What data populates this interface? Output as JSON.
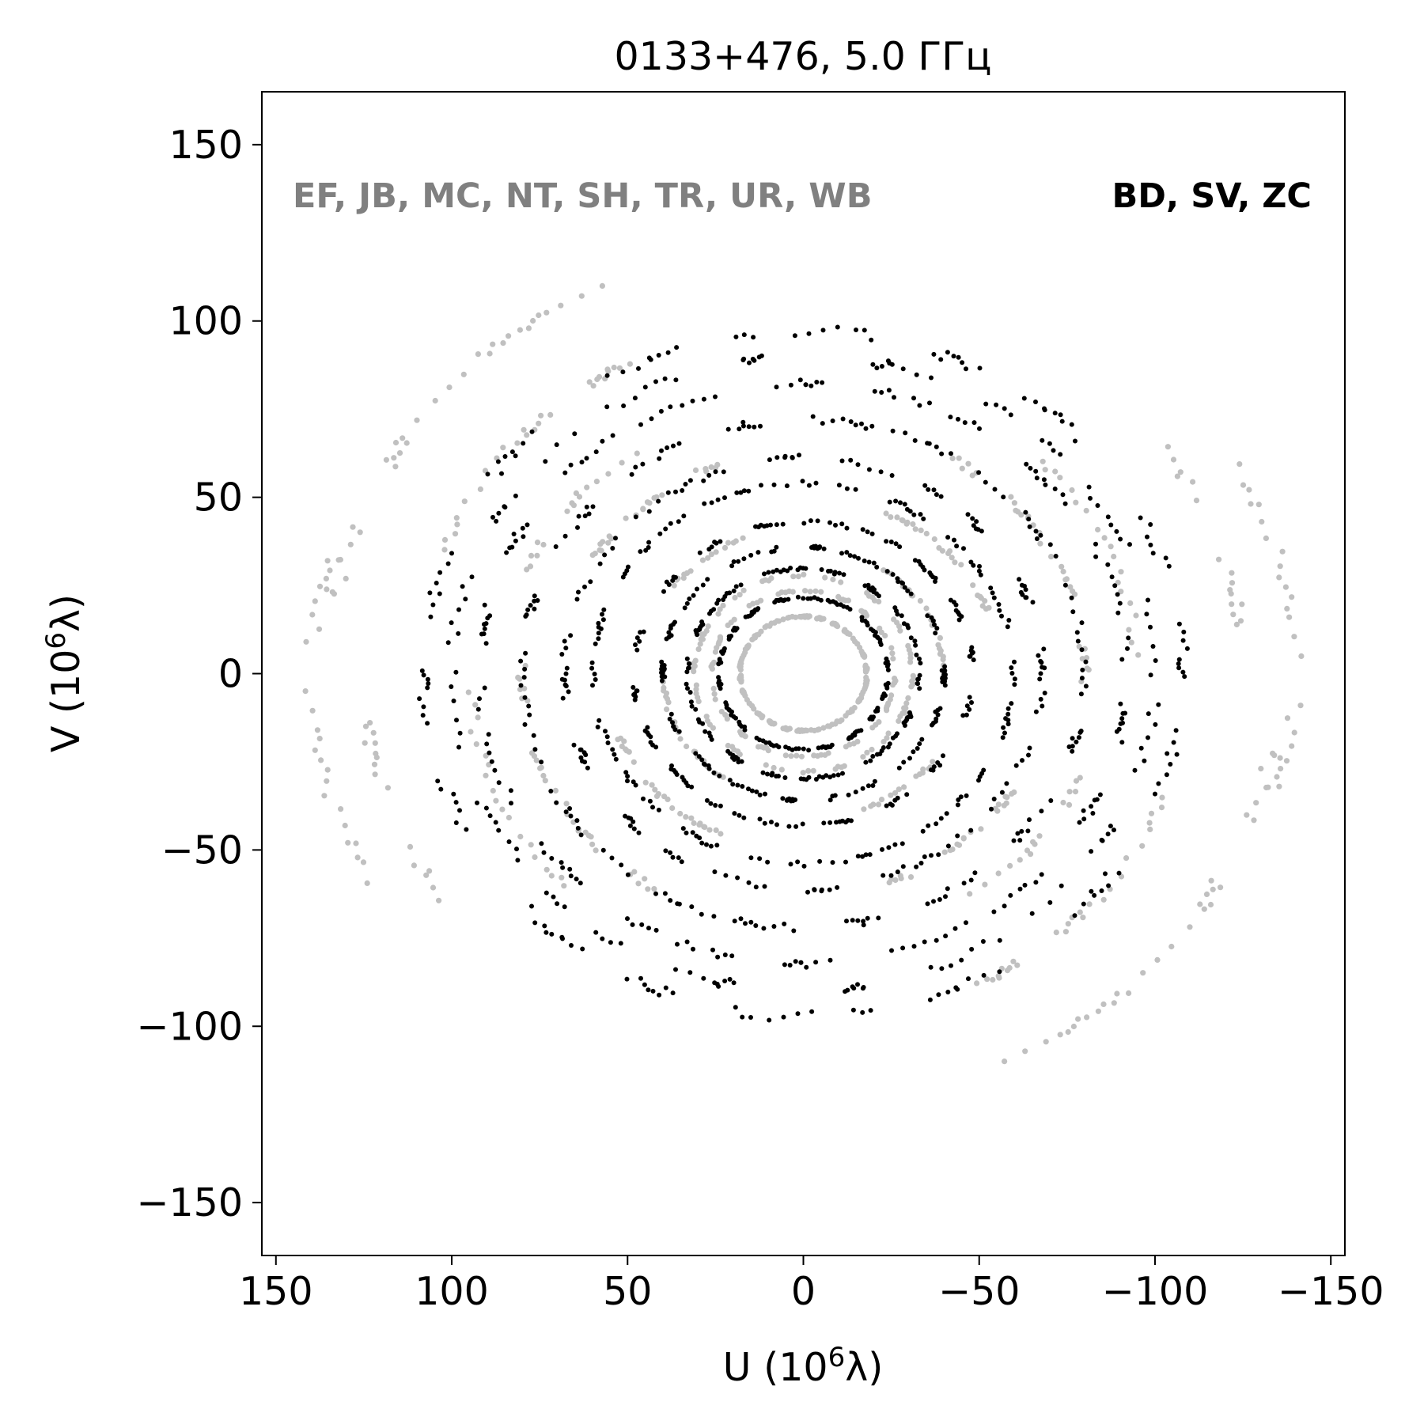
{
  "chart_data": {
    "type": "scatter",
    "title": "0133+476, 5.0 ГГц",
    "xlabel": "U (10",
    "xlabel_sup": "6",
    "xlabel_tail": "λ)",
    "ylabel": "V (10",
    "ylabel_sup": "6",
    "ylabel_tail": "λ)",
    "xlim": [
      154,
      -154
    ],
    "ylim": [
      -165,
      165
    ],
    "x_reversed": true,
    "xticks": [
      150,
      100,
      50,
      0,
      -50,
      -100,
      -150
    ],
    "yticks": [
      150,
      100,
      50,
      0,
      -50,
      -100,
      -150
    ],
    "xtick_labels": [
      "150",
      "100",
      "50",
      "0",
      "−50",
      "−100",
      "−150"
    ],
    "ytick_labels": [
      "150",
      "100",
      "50",
      "0",
      "−50",
      "−100",
      "−150"
    ],
    "grid": false,
    "annotations": [
      {
        "text": "EF, JB, MC, NT, SH, TR, UR, WB",
        "color": "#808080"
      },
      {
        "text": "BD, SV, ZC",
        "color": "#000000"
      }
    ],
    "series": [
      {
        "color": "#c0c0c0",
        "arcs": [
          {
            "r": 18,
            "a": [
              0,
              360
            ]
          },
          {
            "r": 26,
            "a": [
              20,
              200
            ]
          },
          {
            "r": 31,
            "a": [
              200,
              380
            ]
          },
          {
            "r": 40,
            "a": [
              125,
              175
            ]
          },
          {
            "r": 40,
            "a": [
              300,
              350
            ]
          },
          {
            "r": 46,
            "a": [
              215,
              250
            ]
          },
          {
            "r": 46,
            "a": [
              35,
              70
            ]
          },
          {
            "r": 56,
            "a": [
              115,
              165
            ]
          },
          {
            "r": 56,
            "a": [
              295,
              345
            ]
          },
          {
            "r": 70,
            "a": [
              205,
              255
            ]
          },
          {
            "r": 70,
            "a": [
              25,
              75
            ]
          },
          {
            "r": 80,
            "a": [
              120,
              175
            ]
          },
          {
            "r": 80,
            "a": [
              300,
              355
            ]
          },
          {
            "r": 85,
            "a": [
              200,
              235
            ]
          },
          {
            "r": 85,
            "a": [
              20,
              55
            ]
          },
          {
            "r": 95,
            "a": [
              135,
              175
            ]
          },
          {
            "r": 95,
            "a": [
              315,
              355
            ]
          },
          {
            "r": 110,
            "a": [
              200,
              245
            ]
          },
          {
            "r": 110,
            "a": [
              20,
              65
            ]
          },
          {
            "r": 125,
            "a": [
              140,
              180
            ]
          },
          {
            "r": 125,
            "a": [
              320,
              360
            ]
          },
          {
            "r": 135,
            "a": [
              185,
              240
            ]
          },
          {
            "r": 135,
            "a": [
              5,
              60
            ]
          },
          {
            "r": 140,
            "a": [
              150,
              195
            ]
          },
          {
            "r": 140,
            "a": [
              330,
              375
            ]
          }
        ]
      },
      {
        "color": "#000000",
        "arcs": [
          {
            "r": 24,
            "a": [
              0,
              360
            ]
          },
          {
            "r": 33,
            "a": [
              0,
              360
            ]
          },
          {
            "r": 40,
            "a": [
              0,
              360
            ]
          },
          {
            "r": 48,
            "a": [
              0,
              360
            ]
          },
          {
            "r": 60,
            "a": [
              0,
              360
            ]
          },
          {
            "r": 68,
            "a": [
              0,
              360
            ]
          },
          {
            "r": 80,
            "a": [
              0,
              360
            ]
          },
          {
            "r": 92,
            "a": [
              0,
              360
            ]
          },
          {
            "r": 100,
            "a": [
              0,
              360
            ]
          },
          {
            "r": 108,
            "a": [
              0,
              360
            ]
          }
        ]
      }
    ]
  }
}
